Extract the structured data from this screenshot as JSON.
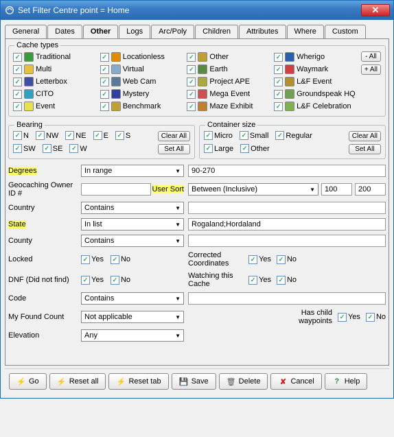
{
  "window": {
    "title": "Set Filter     Centre point = Home"
  },
  "tabs": [
    "General",
    "Dates",
    "Other",
    "Logs",
    "Arc/Poly",
    "Children",
    "Attributes",
    "Where",
    "Custom"
  ],
  "activeTab": 2,
  "cacheTypes": {
    "label": "Cache types",
    "btn_neg_all": "- All",
    "btn_pos_all": "+ All",
    "items": [
      {
        "label": "Traditional",
        "color": "#3a9b3a"
      },
      {
        "label": "Locationless",
        "color": "#e68a00"
      },
      {
        "label": "Other",
        "color": "#c0a030"
      },
      {
        "label": "Wherigo",
        "color": "#2a5fb0"
      },
      {
        "label": "Multi",
        "color": "#e8c040"
      },
      {
        "label": "Virtual",
        "color": "#88aacc"
      },
      {
        "label": "Earth",
        "color": "#5a8a40"
      },
      {
        "label": "Waymark",
        "color": "#d04040"
      },
      {
        "label": "Letterbox",
        "color": "#4050a0"
      },
      {
        "label": "Web Cam",
        "color": "#5a7a9a"
      },
      {
        "label": "Project APE",
        "color": "#aaaa40"
      },
      {
        "label": "L&F Event",
        "color": "#b09030"
      },
      {
        "label": "CITO",
        "color": "#30a0c0"
      },
      {
        "label": "Mystery",
        "color": "#3040a0"
      },
      {
        "label": "Mega Event",
        "color": "#d05050"
      },
      {
        "label": "Groundspeak HQ",
        "color": "#70a050"
      },
      {
        "label": "Event",
        "color": "#e8e050"
      },
      {
        "label": "Benchmark",
        "color": "#c0a030"
      },
      {
        "label": "Maze Exhibit",
        "color": "#c08030"
      },
      {
        "label": "L&F Celebration",
        "color": "#80b050"
      }
    ]
  },
  "bearing": {
    "label": "Bearing",
    "dirs": [
      "N",
      "NW",
      "NE",
      "E",
      "S",
      "SW",
      "SE",
      "W"
    ],
    "clear": "Clear All",
    "set": "Set All"
  },
  "container": {
    "label": "Container size",
    "sizes": [
      "Micro",
      "Small",
      "Regular",
      "Large",
      "Other"
    ],
    "clear": "Clear All",
    "set": "Set All"
  },
  "fields": {
    "degrees": {
      "label": "Degrees",
      "mode": "In range",
      "value": "90-270",
      "hl": true
    },
    "owner": {
      "label": "Geocaching Owner ID #",
      "user_sort": "User Sort",
      "mode": "Between (Inclusive)",
      "v1": "100",
      "v2": "200"
    },
    "country": {
      "label": "Country",
      "mode": "Contains",
      "value": ""
    },
    "state": {
      "label": "State",
      "mode": "In list",
      "value": "Rogaland;Hordaland",
      "hl": true
    },
    "county": {
      "label": "County",
      "mode": "Contains",
      "value": ""
    },
    "locked": {
      "label": "Locked",
      "yes": "Yes",
      "no": "No"
    },
    "corrected": {
      "label": "Corrected Coordinates",
      "yes": "Yes",
      "no": "No"
    },
    "dnf": {
      "label": "DNF (Did not find)",
      "yes": "Yes",
      "no": "No"
    },
    "watching": {
      "label": "Watching this Cache",
      "yes": "Yes",
      "no": "No"
    },
    "code": {
      "label": "Code",
      "mode": "Contains",
      "value": ""
    },
    "myfound": {
      "label": "My Found Count",
      "mode": "Not applicable"
    },
    "haschild": {
      "label": "Has child waypoints",
      "yes": "Yes",
      "no": "No"
    },
    "elevation": {
      "label": "Elevation",
      "mode": "Any"
    }
  },
  "buttons": {
    "go": "Go",
    "resetall": "Reset all",
    "resettab": "Reset tab",
    "save": "Save",
    "delete": "Delete",
    "cancel": "Cancel",
    "help": "Help"
  },
  "colors": {
    "highlight": "#ffff66",
    "titlebar_start": "#5ca4e0",
    "titlebar_end": "#2a6ab3",
    "close": "#c22"
  }
}
